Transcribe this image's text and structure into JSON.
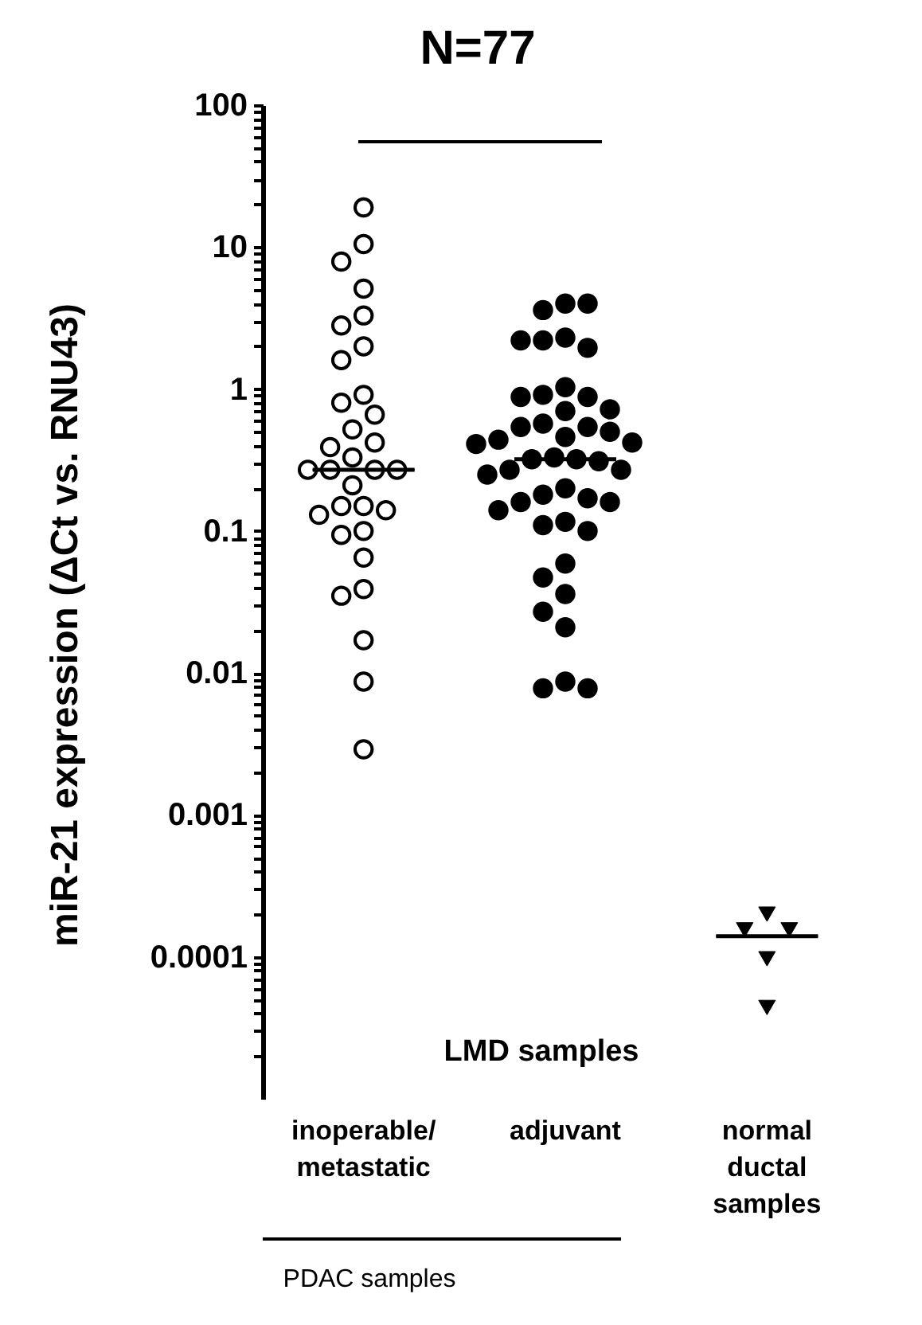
{
  "chart_data": {
    "type": "scatter",
    "title": "N=77",
    "ylabel": "miR-21 expression (ΔCt vs. RNU43)",
    "categories": [
      "inoperable/ metastatic",
      "adjuvant",
      "normal ductal samples"
    ],
    "log": true,
    "ylim": [
      1e-05,
      100
    ],
    "yticks": [
      0.0001,
      0.001,
      0.01,
      0.1,
      1,
      10,
      100,
      {
        "value": 2e-05,
        "label": null
      },
      {
        "value": 3e-05,
        "label": null
      },
      {
        "value": 4e-05,
        "label": null
      },
      {
        "value": 5e-05,
        "label": null
      },
      {
        "value": 6e-05,
        "label": null
      },
      {
        "value": 7e-05,
        "label": null
      },
      {
        "value": 8e-05,
        "label": null
      },
      {
        "value": 9e-05,
        "label": null
      },
      {
        "value": 0.0002,
        "label": null
      },
      {
        "value": 0.0003,
        "label": null
      },
      {
        "value": 0.0004,
        "label": null
      },
      {
        "value": 0.0005,
        "label": null
      },
      {
        "value": 0.0006,
        "label": null
      },
      {
        "value": 0.0007,
        "label": null
      },
      {
        "value": 0.0008,
        "label": null
      },
      {
        "value": 0.0009,
        "label": null
      },
      {
        "value": 0.002,
        "label": null
      },
      {
        "value": 0.003,
        "label": null
      },
      {
        "value": 0.004,
        "label": null
      },
      {
        "value": 0.005,
        "label": null
      },
      {
        "value": 0.006,
        "label": null
      },
      {
        "value": 0.007,
        "label": null
      },
      {
        "value": 0.008,
        "label": null
      },
      {
        "value": 0.009,
        "label": null
      },
      {
        "value": 0.02,
        "label": null
      },
      {
        "value": 0.03,
        "label": null
      },
      {
        "value": 0.04,
        "label": null
      },
      {
        "value": 0.05,
        "label": null
      },
      {
        "value": 0.06,
        "label": null
      },
      {
        "value": 0.07,
        "label": null
      },
      {
        "value": 0.08,
        "label": null
      },
      {
        "value": 0.09,
        "label": null
      },
      {
        "value": 0.2,
        "label": null
      },
      {
        "value": 0.3,
        "label": null
      },
      {
        "value": 0.4,
        "label": null
      },
      {
        "value": 0.5,
        "label": null
      },
      {
        "value": 0.6,
        "label": null
      },
      {
        "value": 0.7,
        "label": null
      },
      {
        "value": 0.8,
        "label": null
      },
      {
        "value": 0.9,
        "label": null
      },
      {
        "value": 2,
        "label": null
      },
      {
        "value": 3,
        "label": null
      },
      {
        "value": 4,
        "label": null
      },
      {
        "value": 5,
        "label": null
      },
      {
        "value": 6,
        "label": null
      },
      {
        "value": 7,
        "label": null
      },
      {
        "value": 8,
        "label": null
      },
      {
        "value": 9,
        "label": null
      },
      {
        "value": 20,
        "label": null
      },
      {
        "value": 30,
        "label": null
      },
      {
        "value": 40,
        "label": null
      },
      {
        "value": 50,
        "label": null
      },
      {
        "value": 60,
        "label": null
      },
      {
        "value": 70,
        "label": null
      },
      {
        "value": 80,
        "label": null
      },
      {
        "value": 90,
        "label": null
      }
    ],
    "series": [
      {
        "color": "#ffffff",
        "marker": "circle",
        "x": [
          "inoperable/ metastatic",
          "inoperable/ metastatic",
          "inoperable/ metastatic",
          "inoperable/ metastatic",
          "inoperable/ metastatic",
          "inoperable/ metastatic",
          "inoperable/ metastatic",
          "inoperable/ metastatic",
          "inoperable/ metastatic",
          "inoperable/ metastatic",
          "inoperable/ metastatic",
          "inoperable/ metastatic",
          "inoperable/ metastatic",
          "inoperable/ metastatic",
          "inoperable/ metastatic",
          "inoperable/ metastatic",
          "inoperable/ metastatic",
          "inoperable/ metastatic",
          "inoperable/ metastatic",
          "inoperable/ metastatic",
          "inoperable/ metastatic",
          "inoperable/ metastatic",
          "inoperable/ metastatic",
          "inoperable/ metastatic",
          "inoperable/ metastatic",
          "inoperable/ metastatic",
          "inoperable/ metastatic",
          "inoperable/ metastatic",
          "inoperable/ metastatic",
          "inoperable/ metastatic",
          "inoperable/ metastatic",
          "inoperable/ metastatic"
        ],
        "values": [
          19,
          10.5,
          7.9,
          5.1,
          3.3,
          2.8,
          2.0,
          1.6,
          0.91,
          0.8,
          0.66,
          0.52,
          0.42,
          0.39,
          0.33,
          0.27,
          0.27,
          0.27,
          0.27,
          0.21,
          0.15,
          0.15,
          0.14,
          0.13,
          0.1,
          0.094,
          0.065,
          0.039,
          0.035,
          0.017,
          0.0087,
          0.0029
        ]
      },
      {
        "color": "#000000",
        "marker": "circle",
        "x": [
          "adjuvant",
          "adjuvant",
          "adjuvant",
          "adjuvant",
          "adjuvant",
          "adjuvant",
          "adjuvant",
          "adjuvant",
          "adjuvant",
          "adjuvant",
          "adjuvant",
          "adjuvant",
          "adjuvant",
          "adjuvant",
          "adjuvant",
          "adjuvant",
          "adjuvant",
          "adjuvant",
          "adjuvant",
          "adjuvant",
          "adjuvant",
          "adjuvant",
          "adjuvant",
          "adjuvant",
          "adjuvant",
          "adjuvant",
          "adjuvant",
          "adjuvant",
          "adjuvant",
          "adjuvant",
          "adjuvant",
          "adjuvant",
          "adjuvant",
          "adjuvant",
          "adjuvant",
          "adjuvant",
          "adjuvant",
          "adjuvant",
          "adjuvant",
          "adjuvant",
          "adjuvant",
          "adjuvant",
          "adjuvant",
          "adjuvant",
          "adjuvant"
        ],
        "values": [
          4.0,
          3.6,
          4.0,
          2.3,
          2.2,
          1.95,
          2.2,
          1.03,
          0.91,
          0.88,
          0.88,
          0.72,
          0.7,
          0.57,
          0.54,
          0.54,
          0.5,
          0.46,
          0.44,
          0.42,
          0.41,
          0.33,
          0.32,
          0.32,
          0.31,
          0.27,
          0.27,
          0.25,
          0.2,
          0.18,
          0.17,
          0.16,
          0.16,
          0.14,
          0.116,
          0.11,
          0.1,
          0.059,
          0.047,
          0.036,
          0.027,
          0.021,
          0.0087,
          0.0078,
          0.0078
        ]
      },
      {
        "color": "#000000",
        "marker": "triangle",
        "x": [
          "normal ductal samples",
          "normal ductal samples",
          "normal ductal samples",
          "normal ductal samples",
          "normal ductal samples"
        ],
        "values": [
          0.0002,
          0.000155,
          0.000155,
          9.7e-05,
          4.4e-05
        ]
      },
      {
        "type": "box",
        "color": "#000000",
        "boxes": [
          {
            "low": 0.27,
            "q1": 0.27,
            "median": 0.27,
            "q3": 0.27,
            "high": 0.27
          },
          {
            "low": 0.32,
            "q1": 0.32,
            "median": 0.32,
            "q3": 0.32,
            "high": 0.32
          },
          {
            "low": 0.00014,
            "q1": 0.00014,
            "median": 0.00014,
            "q3": 0.00014,
            "high": 0.00014
          }
        ]
      }
    ],
    "annotations": [
      "LMD samples",
      "PDAC samples"
    ]
  }
}
